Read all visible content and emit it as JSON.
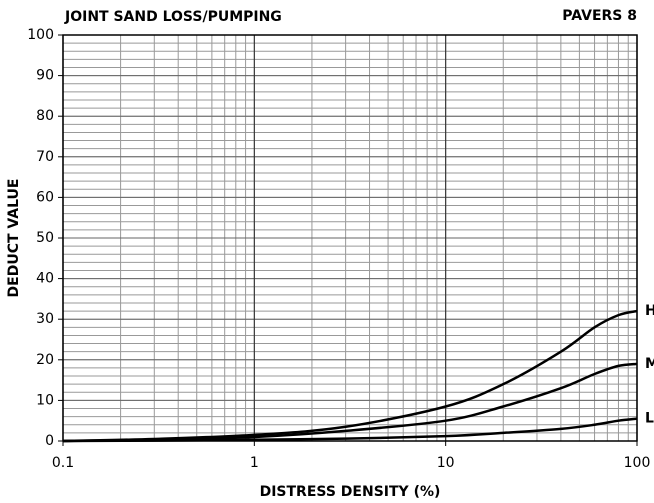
{
  "chart_data": {
    "type": "line",
    "title": "JOINT SAND LOSS/PUMPING",
    "subtitle": "PAVERS 8",
    "x_label": "DISTRESS DENSITY (%)",
    "y_label": "DEDUCT VALUE",
    "x": [
      0.1,
      0.3,
      1,
      3,
      10,
      20,
      40,
      60,
      80,
      100
    ],
    "series": [
      {
        "name": "H",
        "color": "#000000",
        "values": [
          0,
          0.5,
          1.5,
          3.5,
          8.5,
          14,
          22,
          28,
          31,
          32
        ]
      },
      {
        "name": "M",
        "color": "#000000",
        "values": [
          0,
          0.3,
          1,
          2.5,
          5,
          8.5,
          13,
          16.5,
          18.5,
          19
        ]
      },
      {
        "name": "L",
        "color": "#000000",
        "values": [
          0,
          0.1,
          0.3,
          0.6,
          1.2,
          2,
          3,
          4,
          5,
          5.5
        ]
      }
    ],
    "xscale": "log",
    "xlim": [
      0.1,
      100
    ],
    "xticks": [
      0.1,
      1,
      10,
      100
    ],
    "ylim": [
      0,
      100
    ],
    "yticks": [
      0,
      10,
      20,
      30,
      40,
      50,
      60,
      70,
      80,
      90,
      100
    ],
    "grid": true,
    "minor_grid": true
  }
}
